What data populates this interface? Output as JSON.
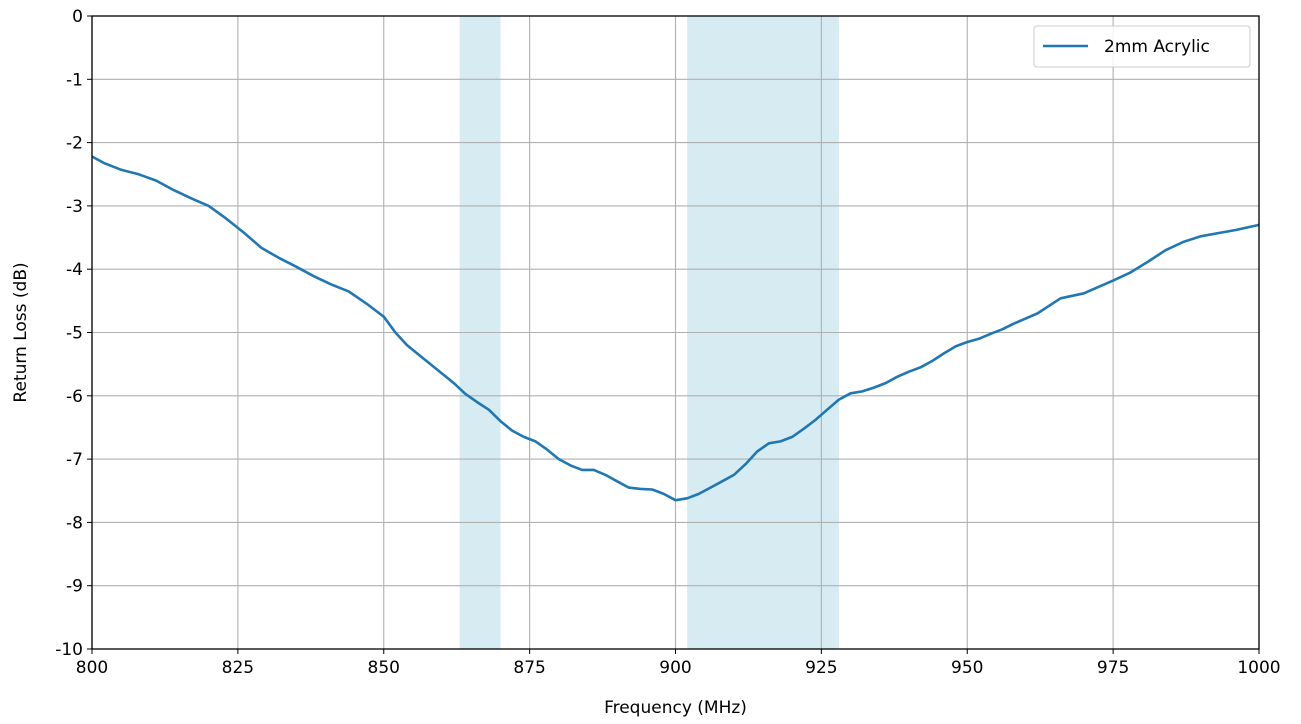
{
  "chart_data": {
    "type": "line",
    "xlabel": "Frequency (MHz)",
    "ylabel": "Return Loss (dB)",
    "xlim": [
      800,
      1000
    ],
    "ylim": [
      -10,
      0
    ],
    "xticks": [
      800,
      825,
      850,
      875,
      900,
      925,
      950,
      975,
      1000
    ],
    "yticks": [
      0,
      -1,
      -2,
      -3,
      -4,
      -5,
      -6,
      -7,
      -8,
      -9,
      -10
    ],
    "grid": true,
    "legend_position": "top-right",
    "shaded_bands": [
      {
        "x_start": 863,
        "x_end": 870,
        "color": "#add8e6"
      },
      {
        "x_start": 902,
        "x_end": 928,
        "color": "#add8e6"
      }
    ],
    "series": [
      {
        "name": "2mm Acrylic",
        "color": "#1f77b4",
        "x": [
          800,
          802,
          805,
          808,
          811,
          814,
          817,
          820,
          823,
          826,
          829,
          832,
          835,
          838,
          841,
          844,
          847,
          850,
          852,
          854,
          856,
          858,
          860,
          862,
          864,
          866,
          868,
          870,
          872,
          874,
          876,
          878,
          880,
          882,
          884,
          886,
          888,
          890,
          892,
          894,
          896,
          898,
          900,
          902,
          904,
          906,
          908,
          910,
          912,
          914,
          916,
          918,
          920,
          922,
          924,
          926,
          928,
          930,
          932,
          934,
          936,
          938,
          940,
          942,
          944,
          946,
          948,
          950,
          952,
          954,
          956,
          958,
          960,
          962,
          964,
          966,
          968,
          970,
          972,
          975,
          978,
          981,
          984,
          987,
          990,
          993,
          996,
          1000
        ],
        "y": [
          -2.22,
          -2.32,
          -2.43,
          -2.5,
          -2.6,
          -2.75,
          -2.88,
          -3.0,
          -3.2,
          -3.42,
          -3.66,
          -3.82,
          -3.96,
          -4.11,
          -4.24,
          -4.35,
          -4.54,
          -4.75,
          -5.0,
          -5.2,
          -5.35,
          -5.5,
          -5.65,
          -5.8,
          -5.97,
          -6.1,
          -6.22,
          -6.4,
          -6.55,
          -6.65,
          -6.72,
          -6.85,
          -7.0,
          -7.1,
          -7.17,
          -7.17,
          -7.25,
          -7.35,
          -7.45,
          -7.47,
          -7.48,
          -7.55,
          -7.65,
          -7.62,
          -7.55,
          -7.45,
          -7.35,
          -7.25,
          -7.08,
          -6.88,
          -6.75,
          -6.72,
          -6.65,
          -6.52,
          -6.38,
          -6.22,
          -6.06,
          -5.96,
          -5.93,
          -5.87,
          -5.8,
          -5.7,
          -5.62,
          -5.55,
          -5.45,
          -5.33,
          -5.22,
          -5.15,
          -5.1,
          -5.02,
          -4.95,
          -4.86,
          -4.78,
          -4.7,
          -4.58,
          -4.46,
          -4.42,
          -4.38,
          -4.3,
          -4.18,
          -4.05,
          -3.88,
          -3.7,
          -3.57,
          -3.48,
          -3.43,
          -3.38,
          -3.3
        ]
      }
    ]
  }
}
